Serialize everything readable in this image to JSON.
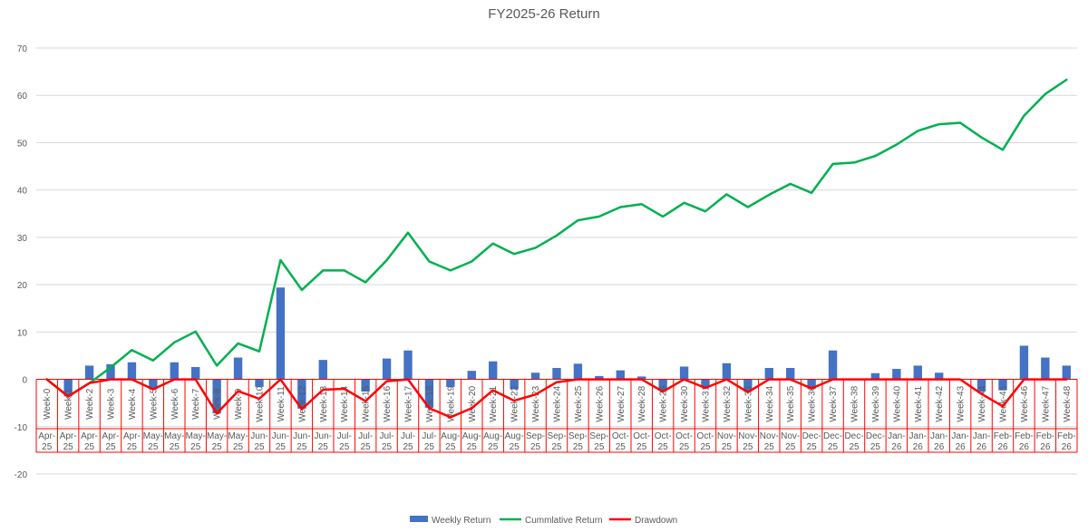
{
  "chart_data": {
    "type": "bar+line",
    "title": "FY2025-26 Return",
    "xlabel": "",
    "ylabel": "",
    "ylim": [
      -20,
      70
    ],
    "yticks": [
      -20,
      -10,
      0,
      10,
      20,
      30,
      40,
      50,
      60,
      70
    ],
    "grid": true,
    "legend": "bottom",
    "categories": [
      "Week-0",
      "Week-1",
      "Week-2",
      "Week-3",
      "Week-4",
      "Week-5",
      "Week-6",
      "Week-7",
      "Week-8",
      "Week-9",
      "Week-10",
      "Week-11",
      "Week-12",
      "Week-13",
      "Week-14",
      "Week-15",
      "Week-16",
      "Week-17",
      "Week-18",
      "Week-19",
      "Week-20",
      "Week-21",
      "Week-22",
      "Week-23",
      "Week-24",
      "Week-25",
      "Week-26",
      "Week-27",
      "Week-28",
      "Week-29",
      "Week-30",
      "Week-31",
      "Week-32",
      "Week-33",
      "Week-34",
      "Week-35",
      "Week-36",
      "Week-37",
      "Week-38",
      "Week-39",
      "Week-40",
      "Week-41",
      "Week-42",
      "Week-43",
      "Week-44",
      "Week-45",
      "Week-46",
      "Week-47",
      "Week-48"
    ],
    "months": [
      "Apr-25",
      "Apr-25",
      "Apr-25",
      "Apr-25",
      "Apr-25",
      "May-25",
      "May-25",
      "May-25",
      "May-25",
      "May-25",
      "Jun-25",
      "Jun-25",
      "Jun-25",
      "Jun-25",
      "Jul-25",
      "Jul-25",
      "Jul-25",
      "Jul-25",
      "Jul-25",
      "Aug-25",
      "Aug-25",
      "Aug-25",
      "Aug-25",
      "Sep-25",
      "Sep-25",
      "Sep-25",
      "Sep-25",
      "Oct-25",
      "Oct-25",
      "Oct-25",
      "Oct-25",
      "Oct-25",
      "Nov-25",
      "Nov-25",
      "Nov-25",
      "Nov-25",
      "Dec-25",
      "Dec-25",
      "Dec-25",
      "Dec-25",
      "Jan-26",
      "Jan-26",
      "Jan-26",
      "Jan-26",
      "Jan-26",
      "Feb-26",
      "Feb-26",
      "Feb-26",
      "Feb-26"
    ],
    "series": [
      {
        "name": "Weekly Return",
        "type": "bar",
        "color": "#4472C4",
        "values": [
          0,
          -3.6,
          2.9,
          3.2,
          3.6,
          -2.1,
          3.6,
          2.6,
          -7.2,
          4.6,
          -1.6,
          19.4,
          -6.2,
          4.1,
          0,
          -2.6,
          4.4,
          6.1,
          -6.0,
          -1.6,
          1.8,
          3.8,
          -2.1,
          1.4,
          2.4,
          3.3,
          0.7,
          1.9,
          0.6,
          -2.5,
          2.7,
          -1.6,
          3.4,
          -2.6,
          2.4,
          2.4,
          -2.0,
          6.1,
          0,
          1.3,
          2.2,
          2.9,
          1.4,
          0,
          -2.6,
          -2.3,
          7.1,
          4.6,
          2.9
        ]
      },
      {
        "name": "Cummlative Return",
        "type": "line",
        "color": "#00B050",
        "values": [
          0,
          -3.6,
          -0.8,
          2.5,
          6.2,
          4.0,
          7.8,
          10.1,
          2.9,
          7.6,
          5.9,
          25.2,
          18.9,
          23.0,
          23.0,
          20.5,
          25.2,
          31.0,
          24.9,
          23.0,
          24.9,
          28.7,
          26.5,
          27.8,
          30.4,
          33.6,
          34.4,
          36.4,
          37.0,
          34.4,
          37.3,
          35.5,
          39.1,
          36.4,
          39.0,
          41.3,
          39.4,
          45.5,
          45.8,
          47.2,
          49.6,
          52.5,
          53.9,
          54.2,
          51.1,
          48.5,
          55.7,
          60.3,
          63.3
        ]
      },
      {
        "name": "Drawdown",
        "type": "line",
        "color": "#FF0000",
        "values": [
          0,
          -3.6,
          -0.8,
          0,
          0,
          -2.1,
          0,
          0,
          -7.2,
          -2.5,
          -4.1,
          0,
          -6.3,
          -2.2,
          -2.0,
          -4.6,
          -0.4,
          0,
          -6.1,
          -8.0,
          -6.1,
          -2.3,
          -4.5,
          -3.2,
          -0.6,
          0,
          0,
          0,
          0,
          -2.6,
          0,
          -1.8,
          0,
          -2.7,
          0,
          0,
          -1.9,
          0,
          0,
          0,
          0,
          0,
          0,
          0,
          -3.1,
          -5.7,
          0,
          0,
          0
        ]
      }
    ]
  }
}
